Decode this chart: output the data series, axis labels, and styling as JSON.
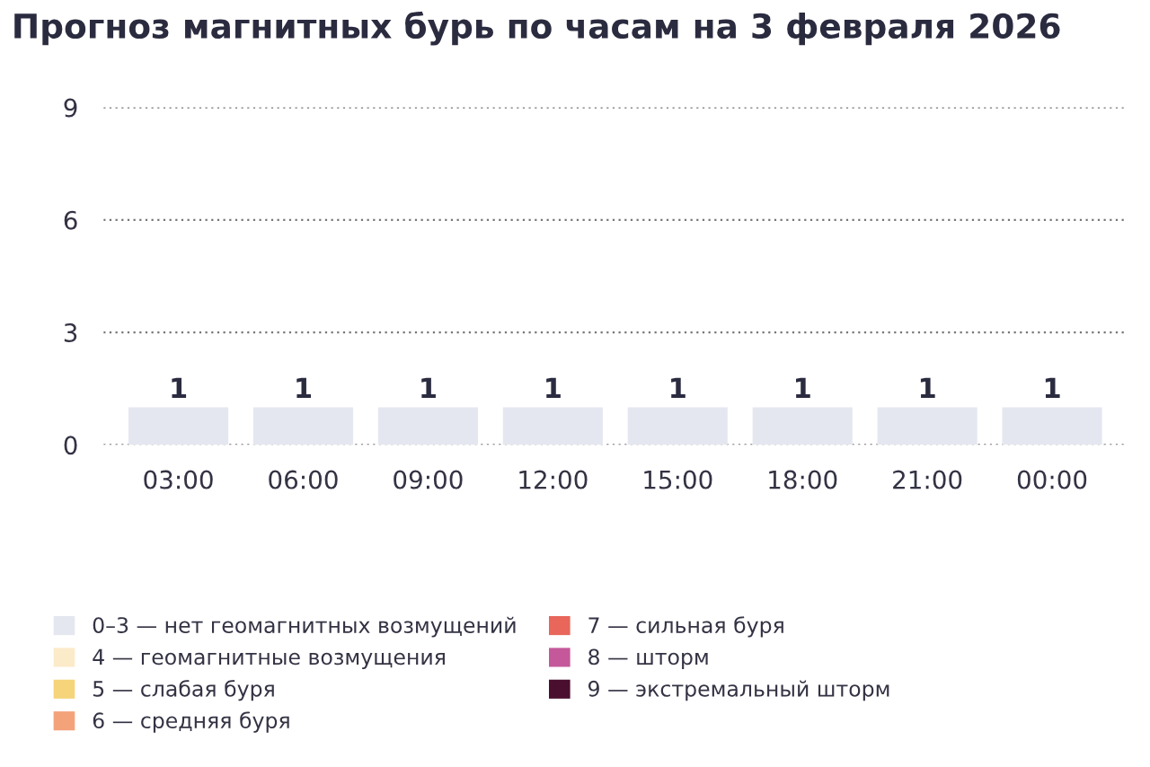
{
  "chart_data": {
    "type": "bar",
    "title": "Прогноз магнитных бурь по часам на 3 февраля 2026",
    "categories": [
      "03:00",
      "06:00",
      "09:00",
      "12:00",
      "15:00",
      "18:00",
      "21:00",
      "00:00"
    ],
    "series": [
      {
        "name": "0–3 — нет геомагнитных возмущений",
        "color": "#e5e7f0",
        "values": [
          1,
          1,
          1,
          1,
          1,
          1,
          1,
          1
        ]
      },
      {
        "name": "4 — геомагнитные возмущения",
        "color": "#fcebc9",
        "values": [
          null,
          null,
          null,
          null,
          null,
          null,
          null,
          null
        ]
      },
      {
        "name": "5 — слабая буря",
        "color": "#f6d47a",
        "values": [
          null,
          null,
          null,
          null,
          null,
          null,
          null,
          null
        ]
      },
      {
        "name": "6 — средняя буря",
        "color": "#f3a27a",
        "values": [
          null,
          null,
          null,
          null,
          null,
          null,
          null,
          null
        ]
      },
      {
        "name": "7 — сильная буря",
        "color": "#e8665a",
        "values": [
          null,
          null,
          null,
          null,
          null,
          null,
          null,
          null
        ]
      },
      {
        "name": "8 — шторм",
        "color": "#c4589a",
        "values": [
          null,
          null,
          null,
          null,
          null,
          null,
          null,
          null
        ]
      },
      {
        "name": "9 — экстремальный шторм",
        "color": "#4a0f2e",
        "values": [
          null,
          null,
          null,
          null,
          null,
          null,
          null,
          null
        ]
      }
    ],
    "ylim": [
      0,
      9
    ],
    "yticks": [
      0,
      3,
      6,
      9
    ],
    "grid": "y",
    "data_labels": true,
    "legend": "bottom"
  }
}
